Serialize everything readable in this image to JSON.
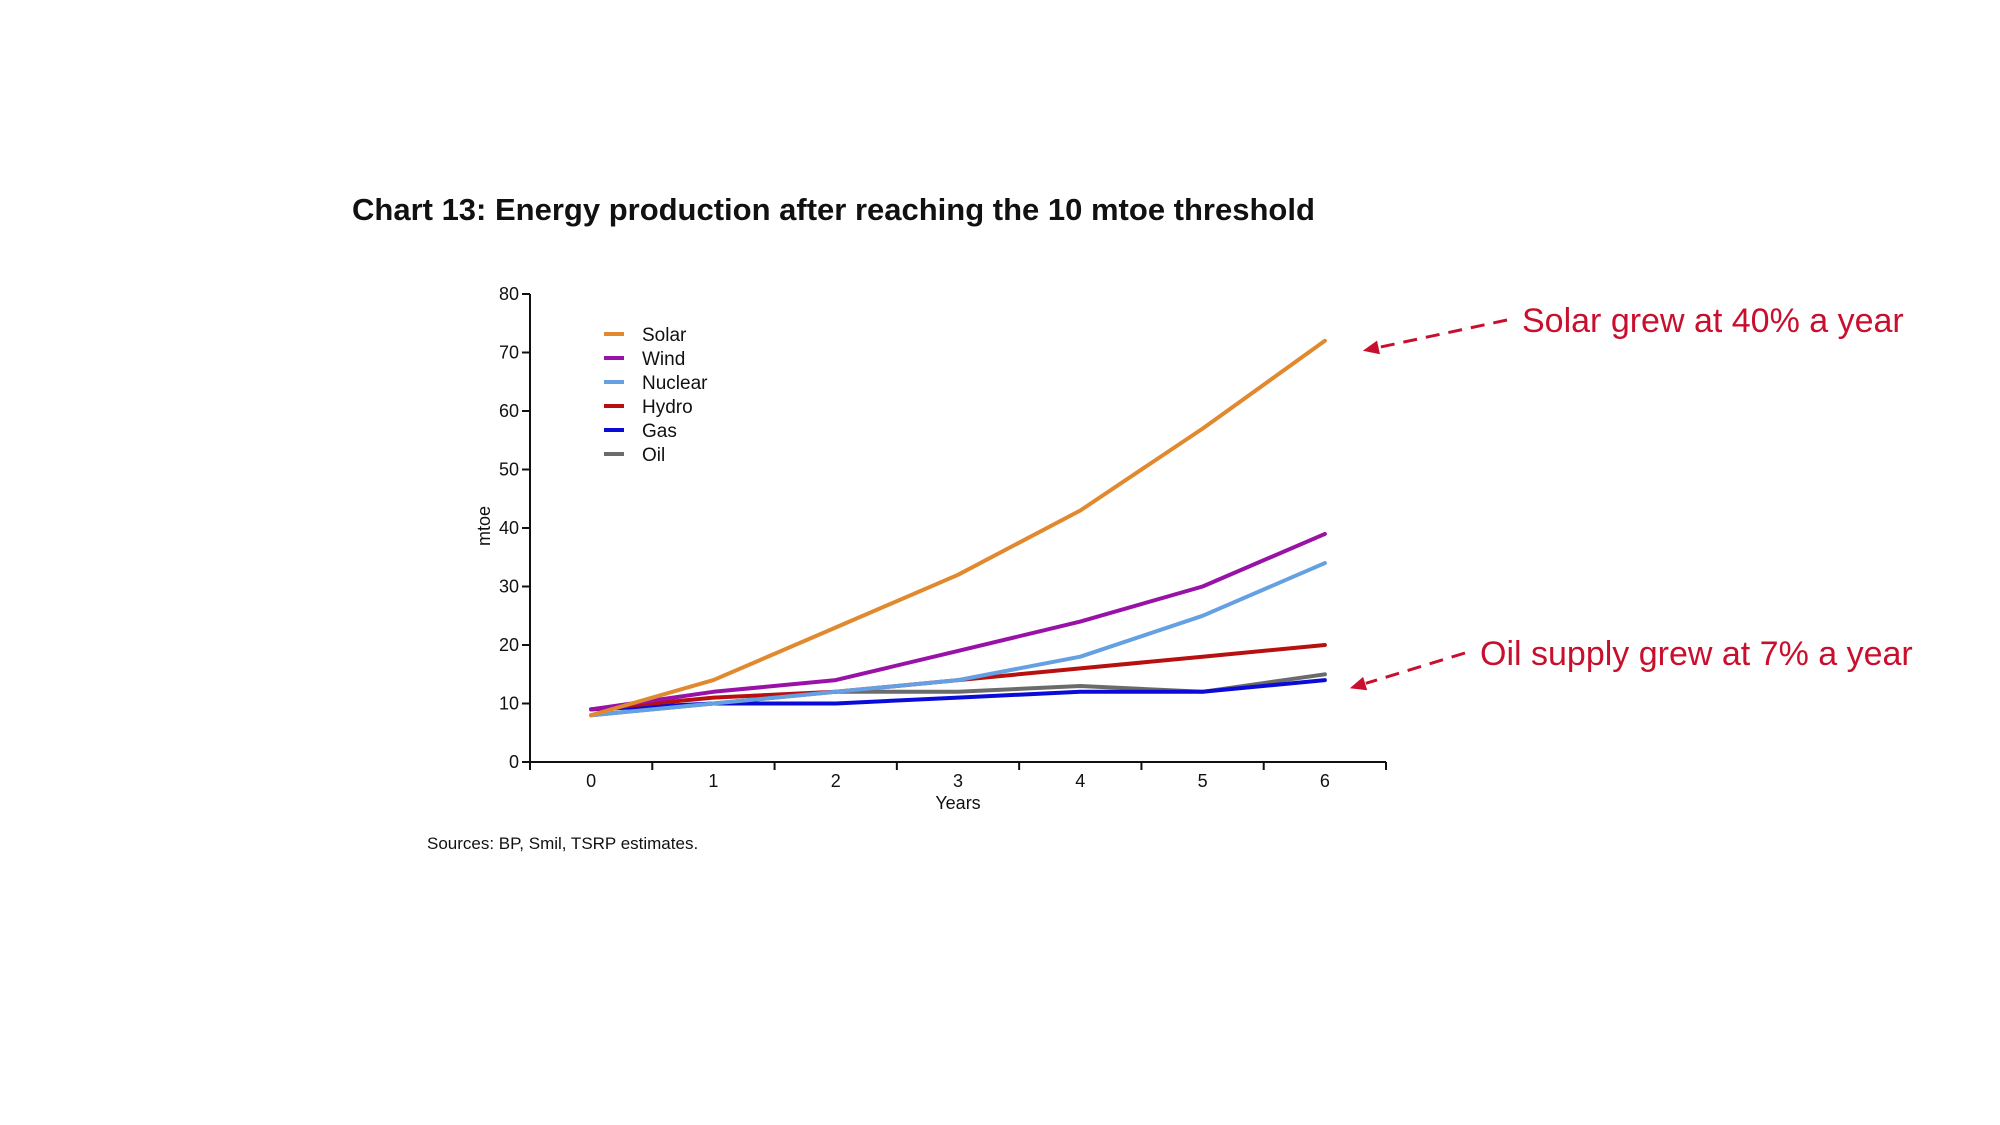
{
  "chart_data": {
    "type": "line",
    "title": "Chart 13: Energy production after reaching the 10 mtoe threshold",
    "xlabel": "Years",
    "ylabel": "mtoe",
    "x": [
      0,
      1,
      2,
      3,
      4,
      5,
      6
    ],
    "xlim": [
      -0.5,
      6.5
    ],
    "ylim": [
      0,
      80
    ],
    "yticks": [
      0,
      10,
      20,
      30,
      40,
      50,
      60,
      70,
      80
    ],
    "grid": false,
    "legend_position": "top-left",
    "series": [
      {
        "name": "Solar",
        "color": "#E0892E",
        "values": [
          8,
          14,
          23,
          32,
          43,
          57,
          72
        ]
      },
      {
        "name": "Wind",
        "color": "#9912A8",
        "values": [
          9,
          12,
          14,
          19,
          24,
          30,
          39
        ]
      },
      {
        "name": "Nuclear",
        "color": "#64A0E2",
        "values": [
          8,
          10,
          12,
          14,
          18,
          25,
          34
        ]
      },
      {
        "name": "Hydro",
        "color": "#B80F0F",
        "values": [
          9,
          11,
          12,
          14,
          16,
          18,
          20
        ]
      },
      {
        "name": "Gas",
        "color": "#0A0AD9",
        "values": [
          9,
          10,
          10,
          11,
          12,
          12,
          14
        ]
      },
      {
        "name": "Oil",
        "color": "#6B6B6B",
        "values": [
          8,
          10,
          12,
          12,
          13,
          12,
          15
        ]
      }
    ],
    "source": "Sources: BP, Smil, TSRP estimates.",
    "annotations": [
      {
        "text": "Solar grew at 40% a year",
        "color": "#C8102E",
        "points_to": {
          "series": "Solar",
          "x": 6
        }
      },
      {
        "text": "Oil supply grew at 7% a year",
        "color": "#C8102E",
        "points_to": {
          "series": "Oil",
          "x": 6
        }
      }
    ]
  }
}
